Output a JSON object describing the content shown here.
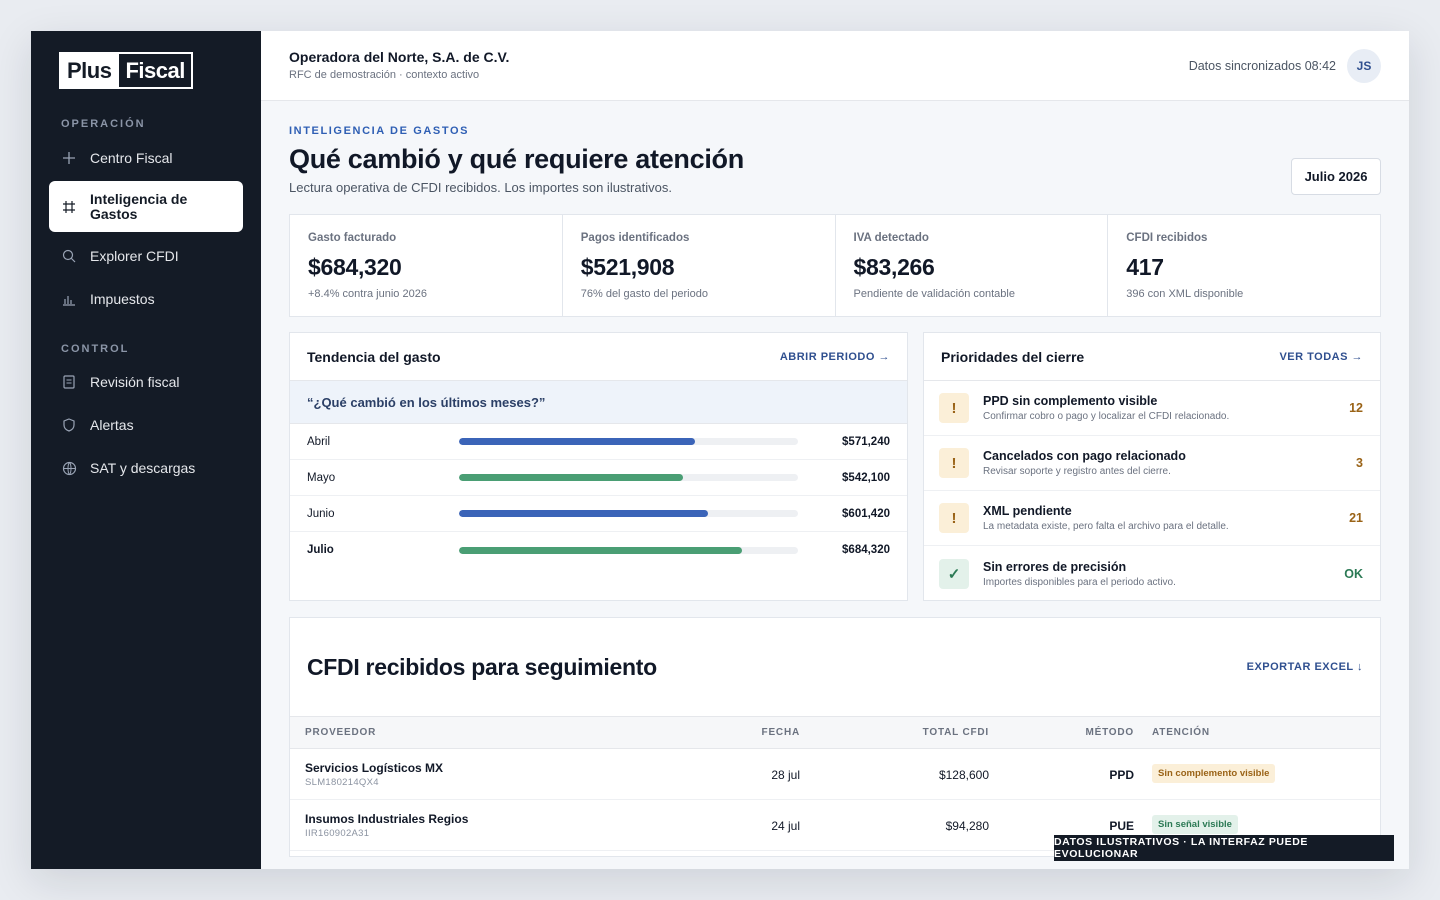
{
  "brand": {
    "part1": "Plus",
    "part2": "Fiscal"
  },
  "sidebar": {
    "section_operacion": "OPERACIÓN",
    "section_control": "CONTROL",
    "items": [
      {
        "label": "Centro Fiscal",
        "icon": "plus-icon"
      },
      {
        "label": "Inteligencia de Gastos",
        "icon": "grid-icon"
      },
      {
        "label": "Explorer CFDI",
        "icon": "search-icon"
      },
      {
        "label": "Impuestos",
        "icon": "bar-chart-icon"
      },
      {
        "label": "Revisión fiscal",
        "icon": "document-icon"
      },
      {
        "label": "Alertas",
        "icon": "shield-icon"
      },
      {
        "label": "SAT y descargas",
        "icon": "globe-icon"
      }
    ]
  },
  "header": {
    "company": "Operadora del Norte, S.A. de C.V.",
    "company_sub": "RFC de demostración · contexto activo",
    "sync": "Datos sincronizados 08:42",
    "avatar": "JS"
  },
  "page": {
    "eyebrow": "INTELIGENCIA DE GASTOS",
    "title": "Qué cambió y qué requiere atención",
    "subtitle": "Lectura operativa de CFDI recibidos. Los importes son ilustrativos.",
    "period": "Julio 2026"
  },
  "kpis": [
    {
      "label": "Gasto facturado",
      "value": "$684,320",
      "note": "+8.4% contra junio 2026"
    },
    {
      "label": "Pagos identificados",
      "value": "$521,908",
      "note": "76% del gasto del periodo"
    },
    {
      "label": "IVA detectado",
      "value": "$83,266",
      "note": "Pendiente de validación contable"
    },
    {
      "label": "CFDI recibidos",
      "value": "417",
      "note": "396 con XML disponible"
    }
  ],
  "trend": {
    "title": "Tendencia del gasto",
    "link": "ABRIR PERIODO →",
    "question": "“¿Qué cambió en los últimos meses?”",
    "max": 820000,
    "rows": [
      {
        "month": "Abril",
        "amount": "$571,240",
        "value": 571240,
        "color": "#3b64b8"
      },
      {
        "month": "Mayo",
        "amount": "$542,100",
        "value": 542100,
        "color": "#4a9e74"
      },
      {
        "month": "Junio",
        "amount": "$601,420",
        "value": 601420,
        "color": "#3b64b8"
      },
      {
        "month": "Julio",
        "amount": "$684,320",
        "value": 684320,
        "color": "#4a9e74"
      }
    ]
  },
  "priorities": {
    "title": "Prioridades del cierre",
    "link": "VER TODAS →",
    "rows": [
      {
        "icon": "!",
        "title": "PPD sin complemento visible",
        "sub": "Confirmar cobro o pago y localizar el CFDI relacionado.",
        "count": "12"
      },
      {
        "icon": "!",
        "title": "Cancelados con pago relacionado",
        "sub": "Revisar soporte y registro antes del cierre.",
        "count": "3"
      },
      {
        "icon": "!",
        "title": "XML pendiente",
        "sub": "La metadata existe, pero falta el archivo para el detalle.",
        "count": "21"
      },
      {
        "icon": "✓",
        "title": "Sin errores de precisión",
        "sub": "Importes disponibles para el periodo activo.",
        "count": "OK"
      }
    ]
  },
  "table": {
    "title": "CFDI recibidos para seguimiento",
    "link": "EXPORTAR EXCEL ↓",
    "headers": {
      "proveedor": "PROVEEDOR",
      "fecha": "FECHA",
      "total": "TOTAL CFDI",
      "metodo": "MÉTODO",
      "atencion": "ATENCIÓN"
    },
    "rows": [
      {
        "proveedor": "Servicios Logísticos MX",
        "rfc": "SLM180214QX4",
        "fecha": "28 jul",
        "total": "$128,600",
        "metodo": "PPD",
        "atencion": "Sin complemento visible"
      },
      {
        "proveedor": "Insumos Industriales Regios",
        "rfc": "IIR160902A31",
        "fecha": "24 jul",
        "total": "$94,280",
        "metodo": "PUE",
        "atencion": "Sin señal visible"
      }
    ]
  },
  "footer_note": "DATOS ILUSTRATIVOS · LA INTERFAZ PUEDE EVOLUCIONAR"
}
